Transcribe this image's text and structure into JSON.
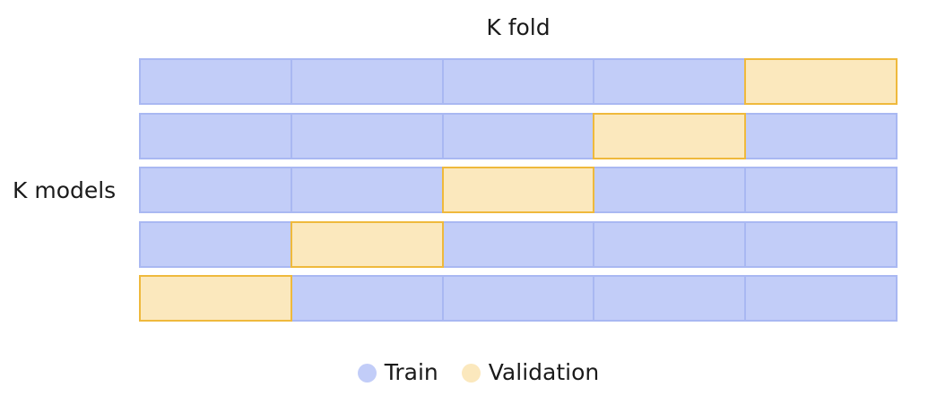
{
  "title": "K fold",
  "row_label": "K models",
  "colors": {
    "train_fill": "#c2cdf8",
    "train_border": "#a9b8f2",
    "validation_fill": "#fbe8bd",
    "validation_border": "#efb93c"
  },
  "folds": 5,
  "rows": [
    {
      "cells": [
        "train",
        "train",
        "train",
        "train",
        "validation"
      ]
    },
    {
      "cells": [
        "train",
        "train",
        "train",
        "validation",
        "train"
      ]
    },
    {
      "cells": [
        "train",
        "train",
        "validation",
        "train",
        "train"
      ]
    },
    {
      "cells": [
        "train",
        "validation",
        "train",
        "train",
        "train"
      ]
    },
    {
      "cells": [
        "validation",
        "train",
        "train",
        "train",
        "train"
      ]
    }
  ],
  "legend": {
    "train_label": "Train",
    "validation_label": "Validation"
  }
}
